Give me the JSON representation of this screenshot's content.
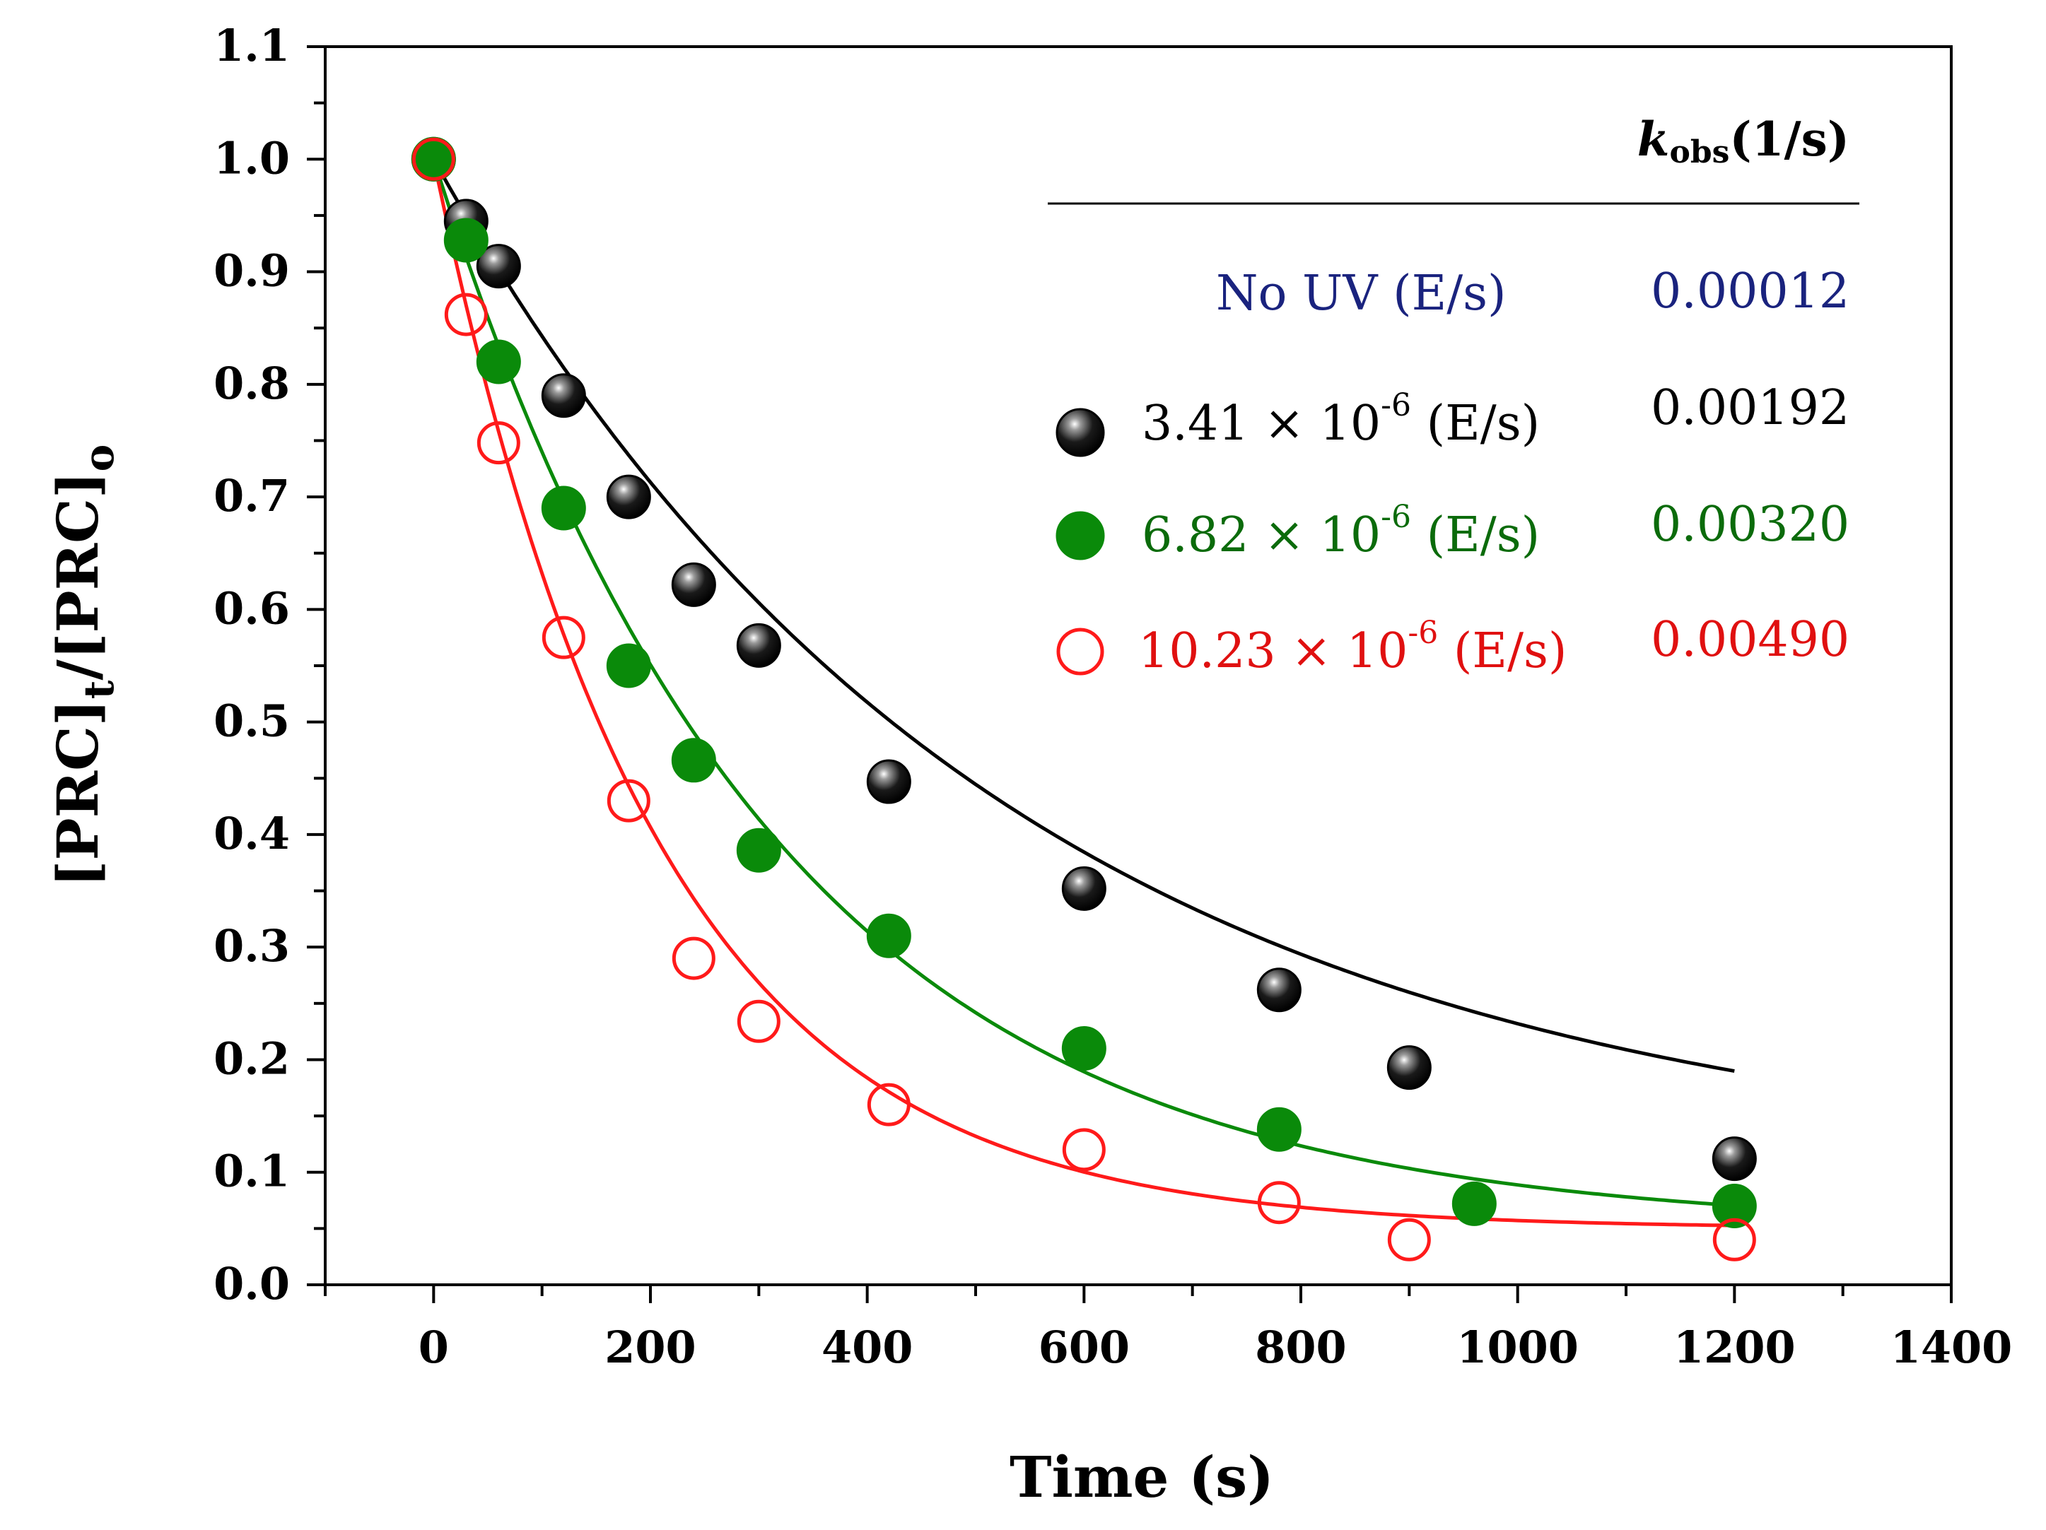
{
  "chart_data": {
    "type": "scatter",
    "title": "",
    "xlabel": "Time (s)",
    "ylabel": "[PRC]t/[PRC]o",
    "ylabel_parts": {
      "main1": "[PRC]",
      "sub1": "t",
      "main2": "/[PRC]",
      "sub2": "o"
    },
    "xlim": [
      -100,
      1400
    ],
    "ylim": [
      0.0,
      1.1
    ],
    "xticks": [
      0,
      200,
      400,
      600,
      800,
      1000,
      1200,
      1400
    ],
    "yticks": [
      0.0,
      0.1,
      0.2,
      0.3,
      0.4,
      0.5,
      0.6,
      0.7,
      0.8,
      0.9,
      1.0,
      1.1
    ],
    "xtick_labels": [
      "0",
      "200",
      "400",
      "600",
      "800",
      "1000",
      "1200",
      "1400"
    ],
    "ytick_labels": [
      "0.0",
      "0.1",
      "0.2",
      "0.3",
      "0.4",
      "0.5",
      "0.6",
      "0.7",
      "0.8",
      "0.9",
      "1.0",
      "1.1"
    ],
    "legend": {
      "header": {
        "k": "k",
        "sub": "obs",
        "unit": "(1/s)"
      },
      "no_uv": {
        "label": "No UV (E/s)",
        "k": "0.00012",
        "color": "#1a237e"
      }
    },
    "series": [
      {
        "name": "3.41 × 10-6 (E/s)",
        "label_main": "3.41 × 10",
        "label_exp": "-6",
        "label_unit": " (E/s)",
        "k_label": "0.00192",
        "k": 0.00192,
        "color": "#000000",
        "text_color": "#000000",
        "marker": "sphere",
        "fit": {
          "a": 0.9,
          "b": 0.1
        },
        "x": [
          0,
          30,
          60,
          120,
          180,
          240,
          300,
          420,
          600,
          780,
          900,
          1200
        ],
        "y": [
          1.0,
          0.945,
          0.905,
          0.79,
          0.7,
          0.622,
          0.568,
          0.447,
          0.352,
          0.262,
          0.193,
          0.112
        ]
      },
      {
        "name": "6.82 × 10-6 (E/s)",
        "label_main": "6.82 × 10",
        "label_exp": "-6",
        "label_unit": " (E/s)",
        "k_label": "0.00320",
        "k": 0.0032,
        "color": "#0a8a0a",
        "text_color": "#0b6b0b",
        "marker": "filled",
        "fit": {
          "a": 0.95,
          "b": 0.05
        },
        "x": [
          0,
          30,
          60,
          120,
          180,
          240,
          300,
          420,
          600,
          780,
          960,
          1200
        ],
        "y": [
          1.0,
          0.928,
          0.82,
          0.69,
          0.55,
          0.466,
          0.386,
          0.31,
          0.21,
          0.138,
          0.072,
          0.07
        ]
      },
      {
        "name": "10.23 × 10-6 (E/s)",
        "label_main": "10.23 × 10",
        "label_exp": "-6",
        "label_unit": " (E/s)",
        "k_label": "0.00490",
        "k": 0.0049,
        "color": "#ff1a1a",
        "text_color": "#e01010",
        "marker": "open",
        "fit": {
          "a": 0.95,
          "b": 0.05
        },
        "x": [
          0,
          30,
          60,
          120,
          180,
          240,
          300,
          420,
          600,
          780,
          900,
          1200
        ],
        "y": [
          1.0,
          0.862,
          0.748,
          0.575,
          0.43,
          0.29,
          0.234,
          0.16,
          0.12,
          0.073,
          0.04,
          0.04
        ]
      }
    ]
  }
}
